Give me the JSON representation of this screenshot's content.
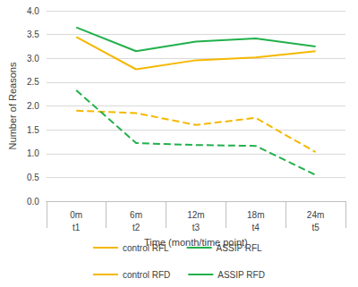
{
  "chart_data": {
    "type": "line",
    "x_label": "Time (month/time point)",
    "y_label": "Number of Reasons",
    "categories": [
      "0m\nt1",
      "6m\nt2",
      "12m\nt3",
      "18m\nt4",
      "24m\nt5"
    ],
    "ylim": [
      0,
      4
    ],
    "yticks": [
      {
        "value": 0,
        "label": "0.0"
      },
      0.5,
      {
        "value": 1,
        "label": "1.0"
      },
      1.5,
      {
        "value": 2,
        "label": "2.0"
      },
      2.5,
      {
        "value": 3,
        "label": "3.0"
      },
      3.5,
      {
        "value": 4,
        "label": "4.0"
      }
    ],
    "grid": true,
    "legend": "bottom",
    "marker": "none",
    "series": [
      {
        "name": "control RFL",
        "color": "#f5b800",
        "line_style": "solid",
        "values": [
          3.45,
          2.77,
          2.96,
          3.02,
          3.15
        ]
      },
      {
        "name": "ASSIP RFL",
        "color": "#22b04b",
        "line_style": "solid",
        "values": [
          3.65,
          3.15,
          3.35,
          3.42,
          3.25
        ]
      },
      {
        "name": "control RFD",
        "color": "#f5b800",
        "line_style": "dashed",
        "values": [
          1.9,
          1.85,
          1.6,
          1.75,
          1.03
        ]
      },
      {
        "name": "ASSIP RFD",
        "color": "#22b04b",
        "line_style": "dashed",
        "values": [
          2.33,
          1.22,
          1.18,
          1.16,
          0.55
        ]
      }
    ]
  }
}
